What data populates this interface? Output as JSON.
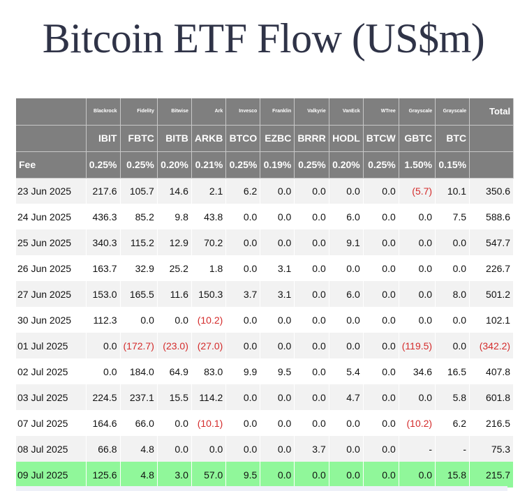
{
  "title": "Bitcoin ETF Flow (US$m)",
  "columns": [
    {
      "issuer": "Blackrock",
      "ticker": "IBIT",
      "fee": "0.25%"
    },
    {
      "issuer": "Fidelity",
      "ticker": "FBTC",
      "fee": "0.25%"
    },
    {
      "issuer": "Bitwise",
      "ticker": "BITB",
      "fee": "0.20%"
    },
    {
      "issuer": "Ark",
      "ticker": "ARKB",
      "fee": "0.21%"
    },
    {
      "issuer": "Invesco",
      "ticker": "BTCO",
      "fee": "0.25%"
    },
    {
      "issuer": "Franklin",
      "ticker": "EZBC",
      "fee": "0.19%"
    },
    {
      "issuer": "Valkyrie",
      "ticker": "BRRR",
      "fee": "0.25%"
    },
    {
      "issuer": "VanEck",
      "ticker": "HODL",
      "fee": "0.20%"
    },
    {
      "issuer": "WTree",
      "ticker": "BTCW",
      "fee": "0.25%"
    },
    {
      "issuer": "Grayscale",
      "ticker": "GBTC",
      "fee": "1.50%"
    },
    {
      "issuer": "Grayscale",
      "ticker": "BTC",
      "fee": "0.15%"
    }
  ],
  "total_label": "Total",
  "fee_label": "Fee",
  "rows": [
    {
      "date": "23 Jun 2025",
      "values": [
        "217.6",
        "105.7",
        "14.6",
        "2.1",
        "6.2",
        "0.0",
        "0.0",
        "0.0",
        "0.0",
        "(5.7)",
        "10.1"
      ],
      "total": "350.6"
    },
    {
      "date": "24 Jun 2025",
      "values": [
        "436.3",
        "85.2",
        "9.8",
        "43.8",
        "0.0",
        "0.0",
        "0.0",
        "6.0",
        "0.0",
        "0.0",
        "7.5"
      ],
      "total": "588.6"
    },
    {
      "date": "25 Jun 2025",
      "values": [
        "340.3",
        "115.2",
        "12.9",
        "70.2",
        "0.0",
        "0.0",
        "0.0",
        "9.1",
        "0.0",
        "0.0",
        "0.0"
      ],
      "total": "547.7"
    },
    {
      "date": "26 Jun 2025",
      "values": [
        "163.7",
        "32.9",
        "25.2",
        "1.8",
        "0.0",
        "3.1",
        "0.0",
        "0.0",
        "0.0",
        "0.0",
        "0.0"
      ],
      "total": "226.7"
    },
    {
      "date": "27 Jun 2025",
      "values": [
        "153.0",
        "165.5",
        "11.6",
        "150.3",
        "3.7",
        "3.1",
        "0.0",
        "6.0",
        "0.0",
        "0.0",
        "8.0"
      ],
      "total": "501.2"
    },
    {
      "date": "30 Jun 2025",
      "values": [
        "112.3",
        "0.0",
        "0.0",
        "(10.2)",
        "0.0",
        "0.0",
        "0.0",
        "0.0",
        "0.0",
        "0.0",
        "0.0"
      ],
      "total": "102.1"
    },
    {
      "date": "01 Jul 2025",
      "values": [
        "0.0",
        "(172.7)",
        "(23.0)",
        "(27.0)",
        "0.0",
        "0.0",
        "0.0",
        "0.0",
        "0.0",
        "(119.5)",
        "0.0"
      ],
      "total": "(342.2)"
    },
    {
      "date": "02 Jul 2025",
      "values": [
        "0.0",
        "184.0",
        "64.9",
        "83.0",
        "9.9",
        "9.5",
        "0.0",
        "5.4",
        "0.0",
        "34.6",
        "16.5"
      ],
      "total": "407.8"
    },
    {
      "date": "03 Jul 2025",
      "values": [
        "224.5",
        "237.1",
        "15.5",
        "114.2",
        "0.0",
        "0.0",
        "0.0",
        "4.7",
        "0.0",
        "0.0",
        "5.8"
      ],
      "total": "601.8"
    },
    {
      "date": "07 Jul 2025",
      "values": [
        "164.6",
        "66.0",
        "0.0",
        "(10.1)",
        "0.0",
        "0.0",
        "0.0",
        "0.0",
        "0.0",
        "(10.2)",
        "6.2"
      ],
      "total": "216.5"
    },
    {
      "date": "08 Jul 2025",
      "values": [
        "66.8",
        "4.8",
        "0.0",
        "0.0",
        "0.0",
        "0.0",
        "3.7",
        "0.0",
        "0.0",
        "-",
        "-"
      ],
      "total": "75.3"
    },
    {
      "date": "09 Jul 2025",
      "values": [
        "125.6",
        "4.8",
        "3.0",
        "57.0",
        "9.5",
        "0.0",
        "0.0",
        "0.0",
        "0.0",
        "0.0",
        "15.8"
      ],
      "total": "215.7",
      "highlight": true
    }
  ],
  "colors": {
    "header_bg": "#7f7f7f",
    "negative": "#d42b2b",
    "highlight": "#90f79a",
    "title": "#2f3347"
  }
}
